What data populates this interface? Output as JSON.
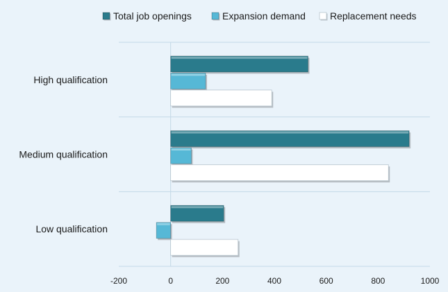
{
  "chart_data": {
    "type": "bar",
    "orientation": "horizontal",
    "categories": [
      "High qualification",
      "Medium qualification",
      "Low qualification"
    ],
    "series": [
      {
        "name": "Total job openings",
        "values": [
          530,
          920,
          205
        ],
        "color": "#2a7b8c"
      },
      {
        "name": "Expansion demand",
        "values": [
          135,
          80,
          -55
        ],
        "color": "#56b8d6"
      },
      {
        "name": "Replacement needs",
        "values": [
          390,
          840,
          260
        ],
        "color": "#ffffff"
      }
    ],
    "xlim": [
      -200,
      1000
    ],
    "x_ticks": [
      -200,
      0,
      200,
      400,
      600,
      800,
      1000
    ],
    "x_tick_labels": [
      "-200",
      "0",
      "200",
      "400",
      "600",
      "800",
      "1000"
    ],
    "legend_position": "top",
    "grid": "horizontal category separators"
  }
}
